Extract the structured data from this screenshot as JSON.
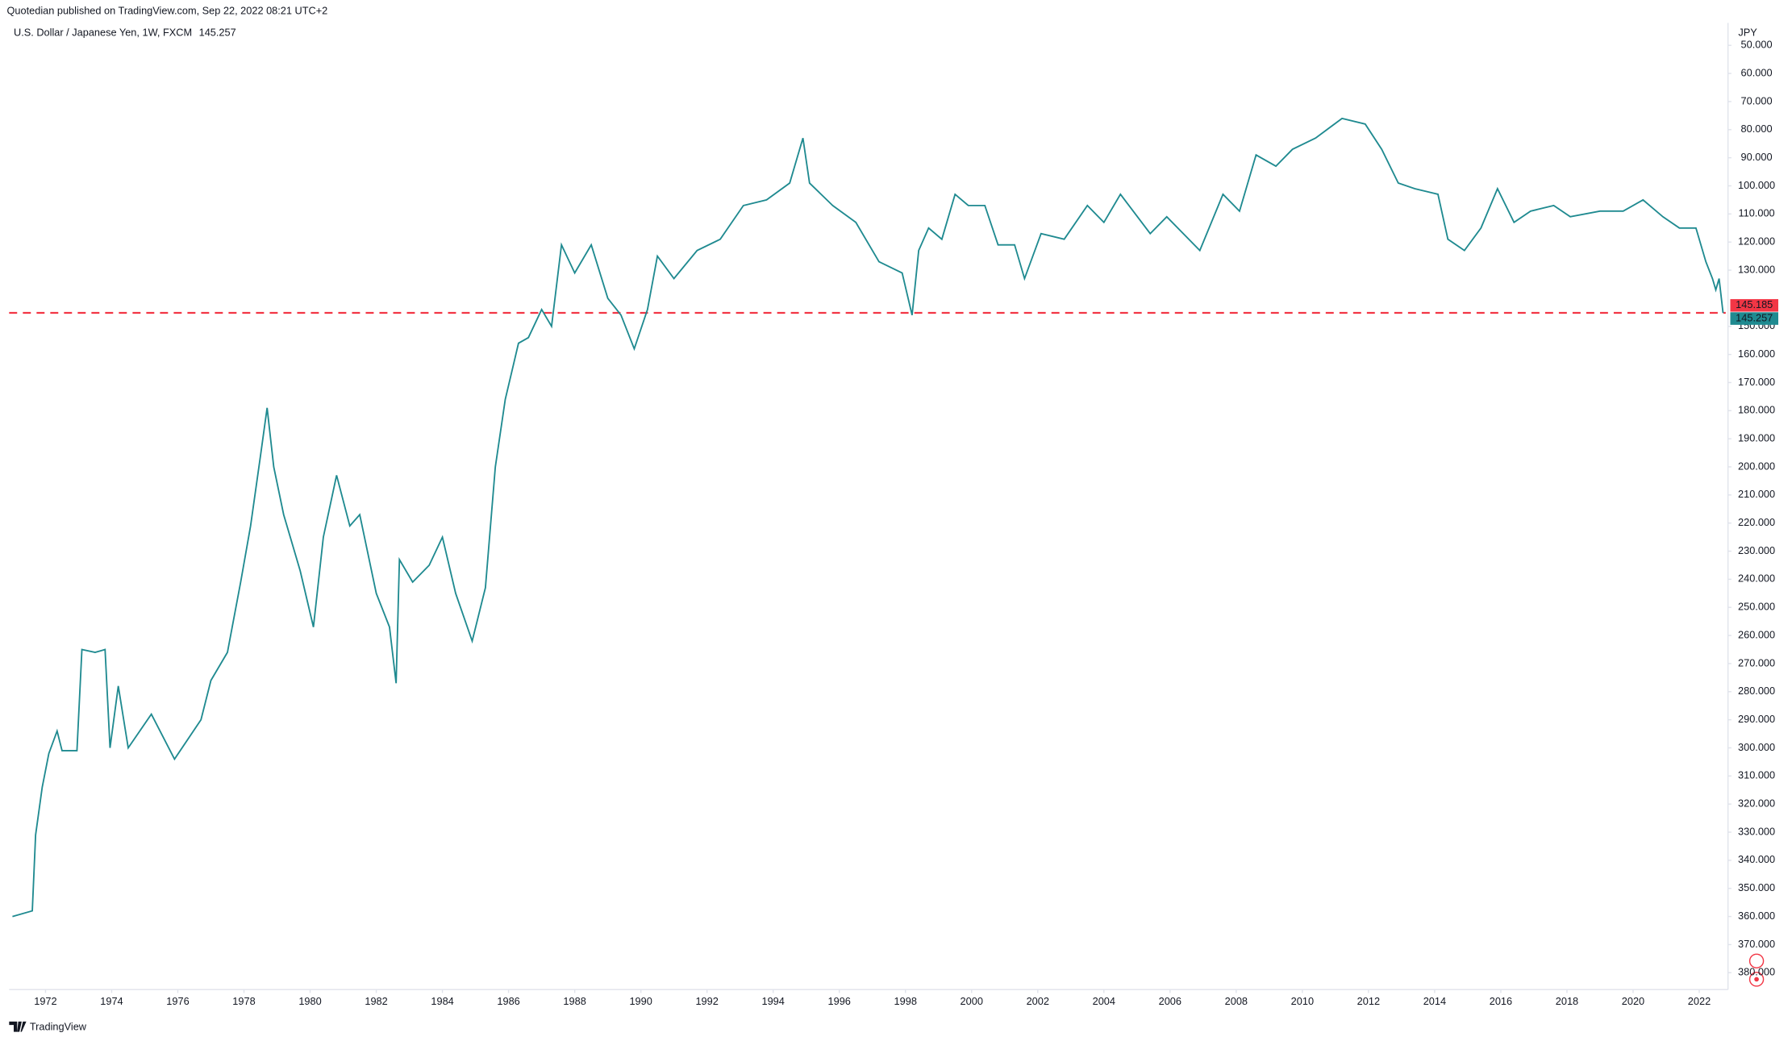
{
  "chart_data": {
    "type": "line",
    "title": "Quotedian published on TradingView.com, Sep 22, 2022 08:21 UTC+2",
    "subtitle": "U.S. Dollar / Japanese Yen, 1W, FXCM",
    "y_unit": "JPY",
    "brand": "TradingView",
    "inverted": true,
    "grid": false,
    "last_value": 145.257,
    "hline": {
      "value": 145.185,
      "color": "#f23645"
    },
    "series": [
      {
        "name": "U.S. Dollar / Japanese Yen",
        "color": "#1f8a90",
        "x": [
          1971.0,
          1971.6,
          1971.7,
          1971.9,
          1972.1,
          1972.35,
          1972.5,
          1972.95,
          1973.1,
          1973.5,
          1973.8,
          1973.95,
          1974.2,
          1974.5,
          1975.2,
          1975.9,
          1976.7,
          1977.0,
          1977.5,
          1977.9,
          1978.2,
          1978.5,
          1978.7,
          1978.9,
          1979.2,
          1979.7,
          1980.1,
          1980.4,
          1980.8,
          1981.2,
          1981.5,
          1982.0,
          1982.4,
          1982.6,
          1982.7,
          1983.1,
          1983.6,
          1984.0,
          1984.4,
          1984.9,
          1985.3,
          1985.6,
          1985.9,
          1986.3,
          1986.6,
          1987.0,
          1987.3,
          1987.6,
          1988.0,
          1988.5,
          1989.0,
          1989.4,
          1989.8,
          1990.2,
          1990.5,
          1991.0,
          1991.7,
          1992.4,
          1993.1,
          1993.8,
          1994.5,
          1994.9,
          1995.1,
          1995.8,
          1996.5,
          1997.2,
          1997.9,
          1998.2,
          1998.4,
          1998.7,
          1999.1,
          1999.5,
          1999.9,
          2000.4,
          2000.8,
          2001.3,
          2001.6,
          2002.1,
          2002.8,
          2003.5,
          2004.0,
          2004.5,
          2005.4,
          2005.9,
          2006.9,
          2007.6,
          2008.1,
          2008.6,
          2009.2,
          2009.7,
          2010.4,
          2011.2,
          2011.9,
          2012.4,
          2012.9,
          2013.4,
          2014.1,
          2014.4,
          2014.9,
          2015.4,
          2015.9,
          2016.4,
          2016.9,
          2017.6,
          2018.1,
          2019.0,
          2019.7,
          2020.3,
          2020.9,
          2021.4,
          2021.9,
          2022.2,
          2022.4,
          2022.5,
          2022.6,
          2022.72
        ],
        "values": [
          360,
          358,
          331,
          314,
          302,
          294,
          301,
          301,
          265,
          266,
          265,
          300,
          278,
          300,
          288,
          304,
          290,
          276,
          266,
          241,
          221,
          196,
          179,
          200,
          217,
          237,
          257,
          225,
          203,
          221,
          217,
          245,
          257,
          277,
          233,
          241,
          235,
          225,
          245,
          262,
          243,
          200,
          176,
          156,
          154,
          144,
          150,
          121,
          131,
          121,
          140,
          146,
          158,
          144,
          125,
          133,
          123,
          119,
          107,
          105,
          99,
          83,
          99,
          107,
          113,
          127,
          131,
          146,
          123,
          115,
          119,
          103,
          107,
          107,
          121,
          121,
          133,
          117,
          119,
          107,
          113,
          103,
          117,
          111,
          123,
          103,
          109,
          89,
          93,
          87,
          83,
          76,
          78,
          87,
          99,
          101,
          103,
          119,
          123,
          115,
          101,
          113,
          109,
          107,
          111,
          109,
          109,
          105,
          111,
          115,
          115,
          127,
          133,
          137,
          133,
          145.257
        ]
      }
    ],
    "xlim": [
      1970.9,
      2022.8
    ],
    "ylim": [
      42,
      385.6
    ],
    "xticks": [
      1972,
      1974,
      1976,
      1978,
      1980,
      1982,
      1984,
      1986,
      1988,
      1990,
      1992,
      1994,
      1996,
      1998,
      2000,
      2002,
      2004,
      2006,
      2008,
      2010,
      2012,
      2014,
      2016,
      2018,
      2020,
      2022
    ],
    "yticks": [
      {
        "value": 50,
        "label": "50.000"
      },
      {
        "value": 60,
        "label": "60.000"
      },
      {
        "value": 70,
        "label": "70.000"
      },
      {
        "value": 80,
        "label": "80.000"
      },
      {
        "value": 90,
        "label": "90.000"
      },
      {
        "value": 100,
        "label": "100.000"
      },
      {
        "value": 110,
        "label": "110.000"
      },
      {
        "value": 120,
        "label": "120.000"
      },
      {
        "value": 130,
        "label": "130.000"
      },
      {
        "value": 150,
        "label": "150.000"
      },
      {
        "value": 160,
        "label": "160.000"
      },
      {
        "value": 170,
        "label": "170.000"
      },
      {
        "value": 180,
        "label": "180.000"
      },
      {
        "value": 190,
        "label": "190.000"
      },
      {
        "value": 200,
        "label": "200.000"
      },
      {
        "value": 210,
        "label": "210.000"
      },
      {
        "value": 220,
        "label": "220.000"
      },
      {
        "value": 230,
        "label": "230.000"
      },
      {
        "value": 240,
        "label": "240.000"
      },
      {
        "value": 250,
        "label": "250.000"
      },
      {
        "value": 260,
        "label": "260.000"
      },
      {
        "value": 270,
        "label": "270.000"
      },
      {
        "value": 280,
        "label": "280.000"
      },
      {
        "value": 290,
        "label": "290.000"
      },
      {
        "value": 300,
        "label": "300.000"
      },
      {
        "value": 310,
        "label": "310.000"
      },
      {
        "value": 320,
        "label": "320.000"
      },
      {
        "value": 330,
        "label": "330.000"
      },
      {
        "value": 340,
        "label": "340.000"
      },
      {
        "value": 350,
        "label": "350.000"
      },
      {
        "value": 360,
        "label": "360.000"
      },
      {
        "value": 370,
        "label": "370.000"
      },
      {
        "value": 380,
        "label": "380.000"
      }
    ]
  }
}
